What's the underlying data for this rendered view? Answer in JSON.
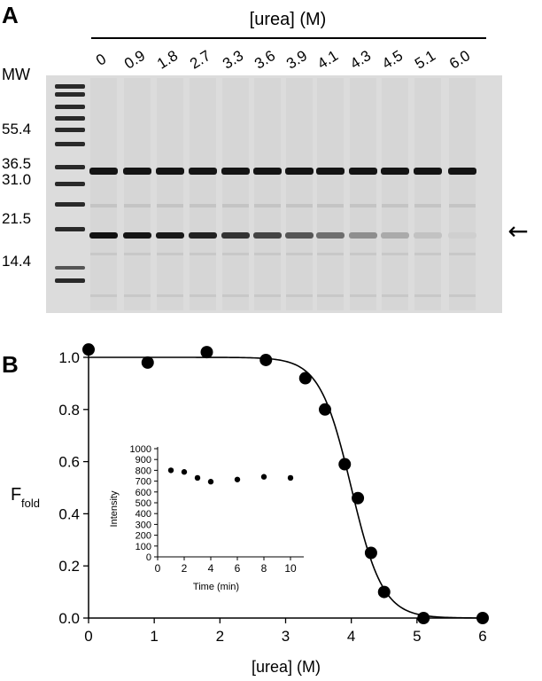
{
  "panel_a": {
    "label": "A",
    "urea_header": "[urea] (M)",
    "lane_labels": [
      "0",
      "0.9",
      "1.8",
      "2.7",
      "3.3",
      "3.6",
      "3.9",
      "4.1",
      "4.3",
      "4.5",
      "5.1",
      "6.0"
    ],
    "mw_header": "MW",
    "mw_markers": [
      "55.4",
      "36.5",
      "31.0",
      "21.5",
      "14.4"
    ],
    "arrow": "←"
  },
  "panel_b": {
    "label": "B"
  },
  "chart_data": [
    {
      "type": "scatter",
      "title": "",
      "xlabel": "[urea] (M)",
      "ylabel_main": "F",
      "ylabel_sub": "fold",
      "xlim": [
        0,
        6
      ],
      "ylim": [
        0,
        1.0
      ],
      "xticks": [
        "0",
        "1",
        "2",
        "3",
        "4",
        "5",
        "6"
      ],
      "yticks": [
        "0.0",
        "0.2",
        "0.4",
        "0.6",
        "0.8",
        "1.0"
      ],
      "series": [
        {
          "x": [
            0,
            0.9,
            1.8,
            2.7,
            3.3,
            3.6,
            3.9,
            4.1,
            4.3,
            4.5,
            5.1,
            6.0
          ],
          "y": [
            1.03,
            0.98,
            1.02,
            0.99,
            0.92,
            0.8,
            0.59,
            0.46,
            0.25,
            0.1,
            0.0,
            0.0
          ]
        }
      ],
      "fit": {
        "type": "sigmoid",
        "midpoint": 4.0,
        "slope": 0.24
      },
      "grid": false
    },
    {
      "type": "scatter",
      "inset": true,
      "title": "",
      "xlabel": "Time (min)",
      "ylabel": "Intensity",
      "xlim": [
        0,
        11
      ],
      "ylim": [
        0,
        1000
      ],
      "xticks": [
        "0",
        "2",
        "4",
        "6",
        "8",
        "10"
      ],
      "yticks": [
        "0",
        "100",
        "200",
        "300",
        "400",
        "500",
        "600",
        "700",
        "800",
        "900",
        "1000"
      ],
      "series": [
        {
          "x": [
            1,
            2,
            3,
            4,
            6,
            8,
            10
          ],
          "y": [
            800,
            785,
            730,
            695,
            715,
            740,
            730
          ]
        }
      ],
      "grid": false
    }
  ]
}
